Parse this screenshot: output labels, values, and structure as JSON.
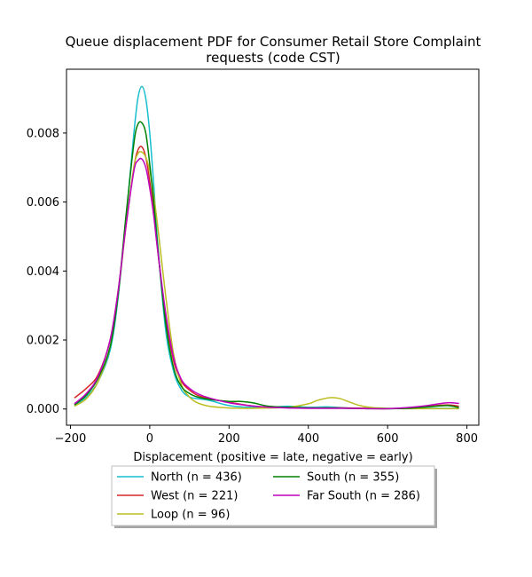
{
  "chart_data": {
    "type": "line",
    "title_lines": [
      "Queue displacement PDF for Consumer Retail Store Complaint",
      "requests (code CST)"
    ],
    "xlabel": "Displacement (positive = late, negative = early)",
    "ylabel": "",
    "xlim": [
      -210,
      830
    ],
    "ylim": [
      -0.00047,
      0.00985
    ],
    "xticks": [
      -200,
      0,
      200,
      400,
      600,
      800
    ],
    "yticks": [
      0.0,
      0.002,
      0.004,
      0.006,
      0.008
    ],
    "ytick_labels": [
      "0.000",
      "0.002",
      "0.004",
      "0.006",
      "0.008"
    ],
    "grid": false,
    "legend_position": "bottom-center",
    "series": [
      {
        "name": "North (n = 436)",
        "color": "#17becf",
        "x": [
          -190,
          -160,
          -130,
          -100,
          -80,
          -60,
          -40,
          -30,
          -20,
          -10,
          0,
          10,
          20,
          40,
          60,
          80,
          100,
          120,
          150,
          200,
          250,
          300,
          350,
          400,
          450,
          500,
          550,
          600,
          650,
          700,
          750,
          780
        ],
        "y": [
          0.0001,
          0.00035,
          0.0008,
          0.0017,
          0.0032,
          0.0055,
          0.008,
          0.009,
          0.00935,
          0.009,
          0.008,
          0.0065,
          0.0048,
          0.0023,
          0.0011,
          0.00055,
          0.00035,
          0.0003,
          0.00025,
          0.0001,
          5e-05,
          5e-05,
          8e-05,
          5e-05,
          6e-05,
          3e-05,
          2e-05,
          1e-05,
          2e-05,
          2e-05,
          2e-05,
          1e-05
        ]
      },
      {
        "name": "West (n = 221)",
        "color": "#d62728",
        "x": [
          -190,
          -160,
          -130,
          -100,
          -80,
          -60,
          -40,
          -30,
          -20,
          -10,
          0,
          10,
          20,
          40,
          60,
          80,
          100,
          120,
          150,
          200,
          250,
          300,
          350,
          400,
          450,
          500,
          550,
          600,
          650,
          700,
          750,
          780
        ],
        "y": [
          0.00032,
          0.0006,
          0.001,
          0.002,
          0.0034,
          0.0053,
          0.007,
          0.0075,
          0.0076,
          0.0073,
          0.0066,
          0.0057,
          0.0046,
          0.0027,
          0.0014,
          0.0008,
          0.00055,
          0.0004,
          0.0003,
          0.0002,
          0.0001,
          5e-05,
          4e-05,
          3e-05,
          3e-05,
          3e-05,
          2e-05,
          1e-05,
          3e-05,
          8e-05,
          0.00012,
          8e-05
        ]
      },
      {
        "name": "Loop (n = 96)",
        "color": "#bcbd22",
        "x": [
          -190,
          -160,
          -130,
          -100,
          -80,
          -60,
          -40,
          -30,
          -20,
          -10,
          0,
          10,
          20,
          40,
          60,
          80,
          100,
          120,
          150,
          200,
          250,
          300,
          350,
          400,
          420,
          440,
          460,
          480,
          500,
          530,
          560,
          600,
          650,
          700,
          750,
          780
        ],
        "y": [
          8e-05,
          0.0003,
          0.0008,
          0.0018,
          0.0033,
          0.0053,
          0.007,
          0.0074,
          0.00745,
          0.0073,
          0.0069,
          0.0062,
          0.0053,
          0.0033,
          0.0016,
          0.0007,
          0.00035,
          0.00018,
          8e-05,
          3e-05,
          2e-05,
          3e-05,
          5e-05,
          0.00015,
          0.00024,
          0.0003,
          0.00033,
          0.0003,
          0.00022,
          0.0001,
          4e-05,
          2e-05,
          1e-05,
          1e-05,
          1e-05,
          1e-05
        ]
      },
      {
        "name": "South (n = 355)",
        "color": "#008000",
        "x": [
          -190,
          -160,
          -130,
          -100,
          -80,
          -60,
          -40,
          -30,
          -20,
          -10,
          0,
          10,
          20,
          40,
          60,
          80,
          100,
          120,
          150,
          200,
          230,
          260,
          300,
          350,
          400,
          450,
          500,
          550,
          600,
          650,
          700,
          750,
          780
        ],
        "y": [
          0.00012,
          0.0004,
          0.0009,
          0.0018,
          0.0033,
          0.0056,
          0.0077,
          0.00825,
          0.0083,
          0.008,
          0.0071,
          0.006,
          0.0047,
          0.0025,
          0.0012,
          0.00065,
          0.00045,
          0.00035,
          0.00028,
          0.00022,
          0.00022,
          0.00018,
          8e-05,
          5e-05,
          3e-05,
          3e-05,
          2e-05,
          1e-05,
          1e-05,
          2e-05,
          6e-05,
          0.0001,
          4e-05
        ]
      },
      {
        "name": "Far South (n = 286)",
        "color": "#bf00bf",
        "x": [
          -190,
          -160,
          -130,
          -100,
          -80,
          -60,
          -40,
          -30,
          -20,
          -10,
          0,
          10,
          20,
          40,
          60,
          80,
          100,
          120,
          150,
          200,
          250,
          300,
          350,
          400,
          450,
          500,
          550,
          600,
          650,
          700,
          750,
          780
        ],
        "y": [
          0.00015,
          0.00045,
          0.00095,
          0.002,
          0.0034,
          0.0053,
          0.0069,
          0.0072,
          0.00725,
          0.007,
          0.0064,
          0.0056,
          0.0046,
          0.0028,
          0.0015,
          0.00085,
          0.0006,
          0.00045,
          0.00032,
          0.00018,
          0.0001,
          5e-05,
          3e-05,
          2e-05,
          2e-05,
          2e-05,
          1e-05,
          1e-05,
          4e-05,
          0.0001,
          0.00018,
          0.00016
        ]
      }
    ]
  }
}
